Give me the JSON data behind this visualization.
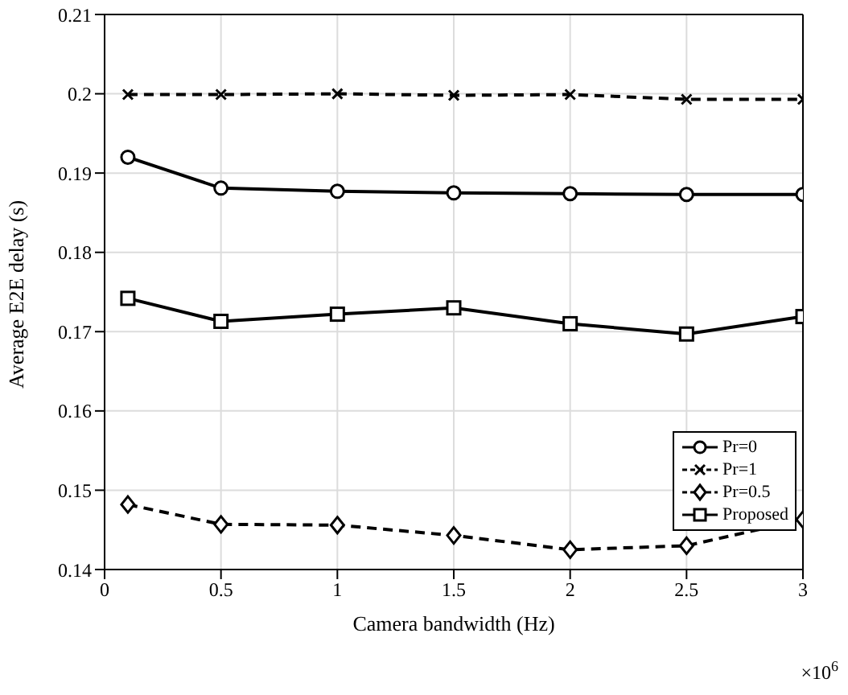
{
  "chart_data": {
    "type": "line",
    "xlabel": "Camera bandwidth (Hz)",
    "ylabel": "Average E2E delay (s)",
    "x": [
      0.1,
      0.5,
      1,
      1.5,
      2,
      2.5,
      3
    ],
    "series": [
      {
        "name": "Pr=0",
        "color": "#000000",
        "marker": "circle",
        "line_style": "solid",
        "values": [
          0.192,
          0.1881,
          0.1877,
          0.1875,
          0.1874,
          0.1873,
          0.1873
        ]
      },
      {
        "name": "Pr=1",
        "color": "#000000",
        "marker": "cross",
        "line_style": "dashed",
        "values": [
          0.1999,
          0.1999,
          0.2,
          0.1998,
          0.1999,
          0.1993,
          0.1993
        ]
      },
      {
        "name": "Pr=0.5",
        "color": "#000000",
        "marker": "diamond",
        "line_style": "dashed",
        "values": [
          0.1482,
          0.1457,
          0.1456,
          0.1443,
          0.1425,
          0.143,
          0.1463
        ]
      },
      {
        "name": "Proposed",
        "color": "#000000",
        "marker": "square",
        "line_style": "solid",
        "values": [
          0.1742,
          0.1713,
          0.1722,
          0.173,
          0.171,
          0.1697,
          0.1719
        ]
      }
    ],
    "xlim": [
      0,
      3
    ],
    "xticks": [
      0,
      0.5,
      1,
      1.5,
      2,
      2.5,
      3
    ],
    "ylim": [
      0.14,
      0.21
    ],
    "yticks": [
      0.14,
      0.15,
      0.16,
      0.17,
      0.18,
      0.19,
      0.2,
      0.21
    ],
    "grid": true,
    "legend": "bottom right",
    "annotations": [
      "×10$^{6}$"
    ]
  }
}
